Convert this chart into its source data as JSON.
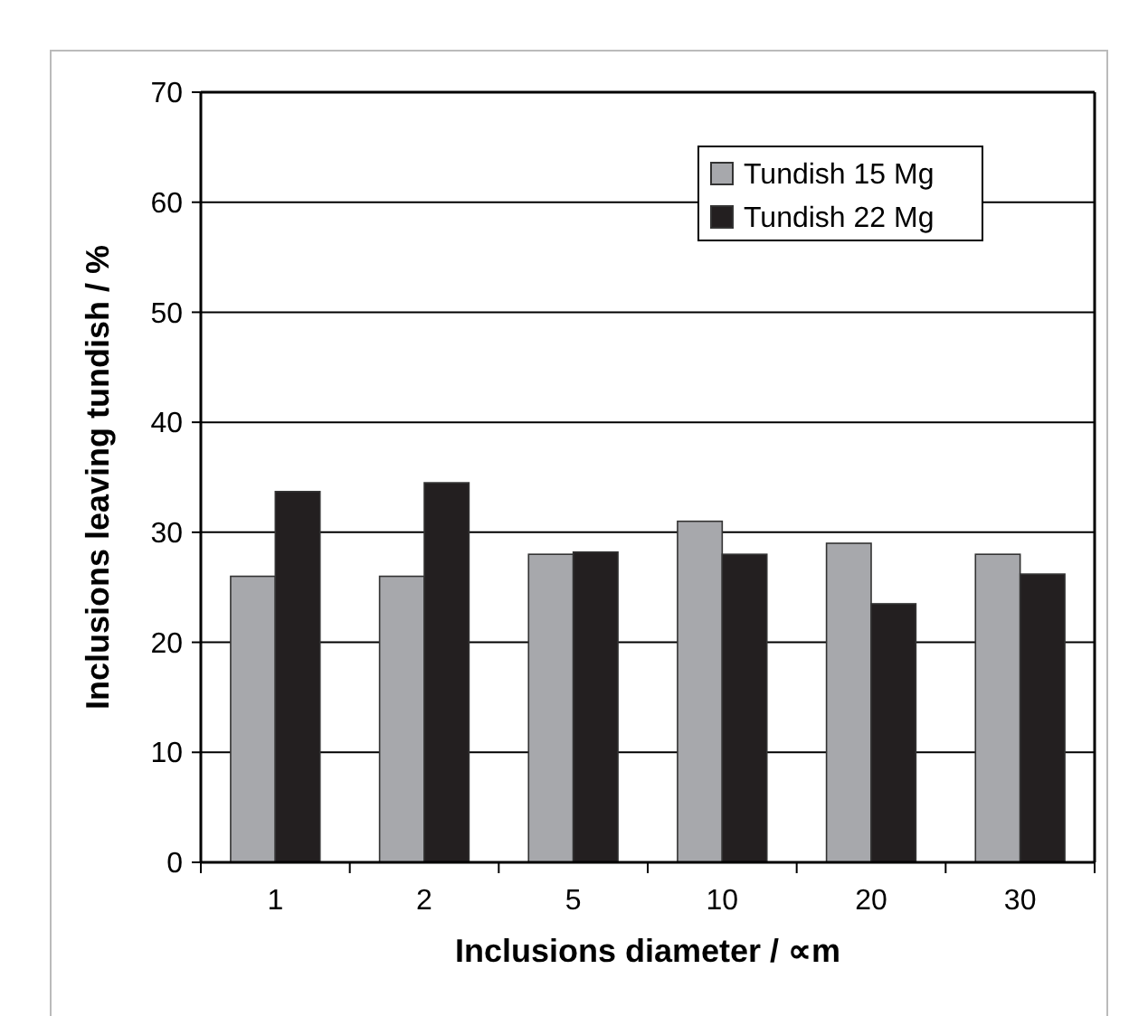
{
  "chart_data": {
    "type": "bar",
    "xlabel": "Inclusions diameter / ∝m",
    "ylabel": "Inclusions leaving tundish  / %",
    "categories": [
      "1",
      "2",
      "5",
      "10",
      "20",
      "30"
    ],
    "series": [
      {
        "name": "Tundish 15 Mg",
        "color": "#a7a8ac",
        "values": [
          26,
          26,
          28,
          31,
          29,
          28
        ]
      },
      {
        "name": "Tundish 22 Mg",
        "color": "#231f20",
        "values": [
          33.7,
          34.5,
          28.2,
          28,
          23.5,
          26.2
        ]
      }
    ],
    "ylim": [
      0,
      70
    ],
    "yticks": [
      0,
      10,
      20,
      30,
      40,
      50,
      60,
      70
    ],
    "grid": "y",
    "legend": "top right"
  }
}
